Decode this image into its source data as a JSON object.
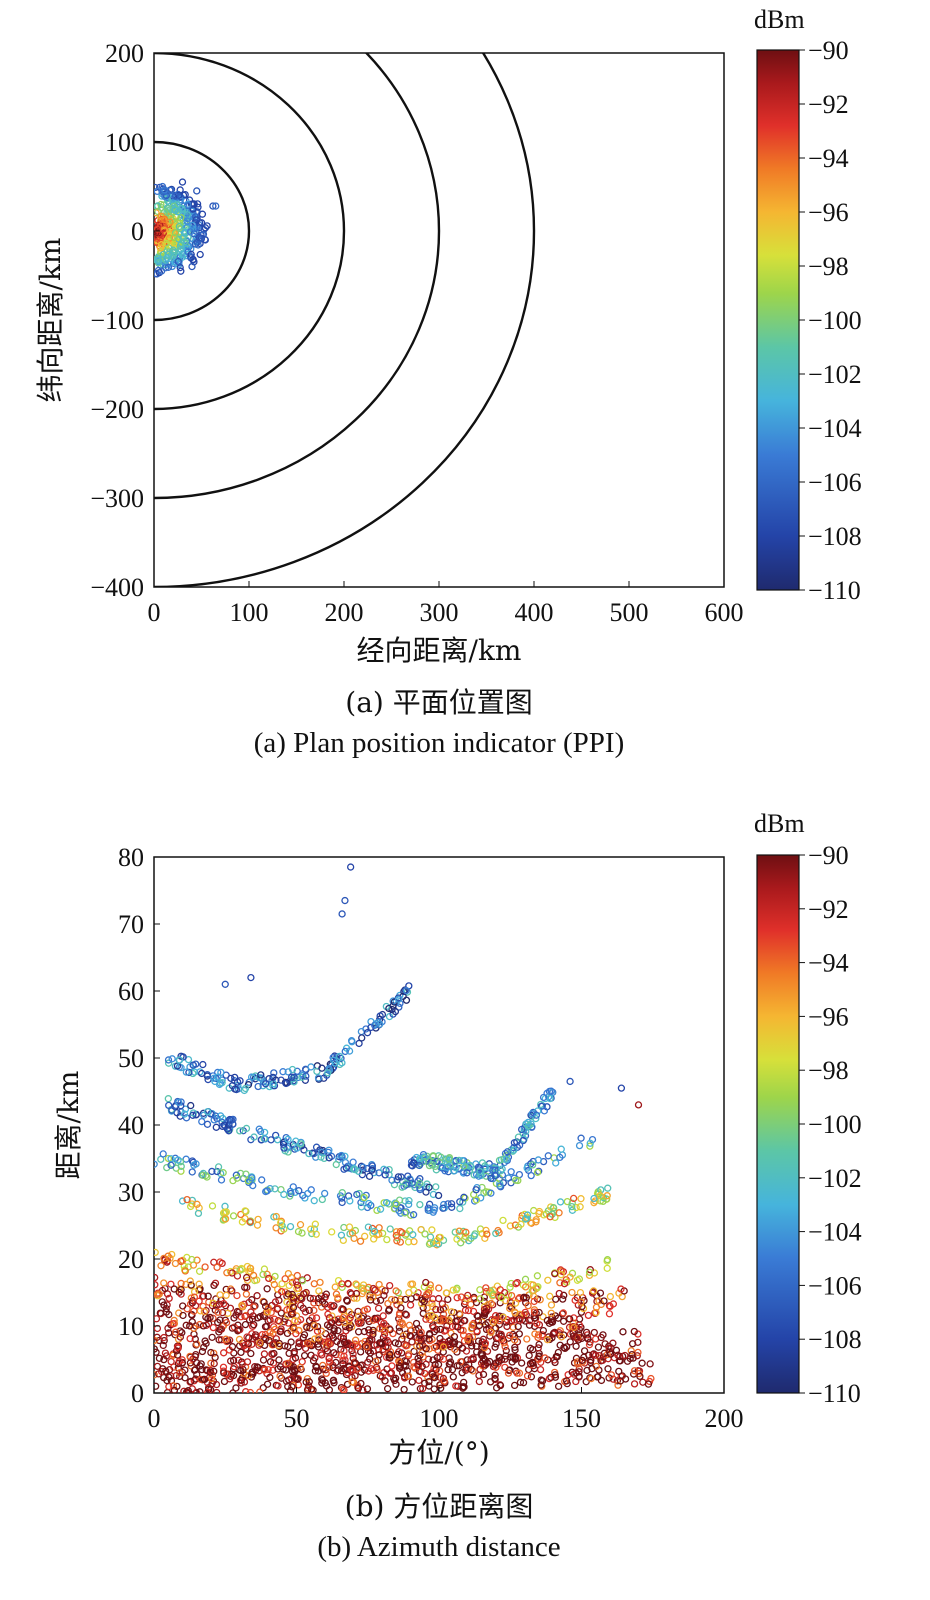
{
  "chart_data": [
    {
      "type": "scatter",
      "xlabel": "经向距离/km",
      "ylabel": "纬向距离/km",
      "xlim": [
        0,
        600
      ],
      "ylim": [
        -400,
        200
      ],
      "xticks": [
        0,
        100,
        200,
        300,
        400,
        500,
        600
      ],
      "yticks": [
        200,
        100,
        0,
        -100,
        -200,
        -300,
        -400
      ],
      "range_rings_km": [
        100,
        200,
        300,
        400
      ],
      "cluster": {
        "x_range_km": [
          0,
          70
        ],
        "y_range_km": [
          -45,
          55
        ],
        "center_dbm": -90,
        "edge_dbm": -108
      },
      "colorbar": {
        "title": "dBm",
        "min": -110,
        "max": -90,
        "ticks": [
          -90,
          -92,
          -94,
          -96,
          -98,
          -100,
          -102,
          -104,
          -106,
          -108,
          -110
        ]
      },
      "caption_cn": "(a) 平面位置图",
      "caption_en": "(a) Plan position indicator (PPI)"
    },
    {
      "type": "scatter",
      "xlabel": "方位/(°)",
      "ylabel": "距离/km",
      "xlim": [
        0,
        200
      ],
      "ylim": [
        0,
        80
      ],
      "xticks": [
        0,
        50,
        100,
        150,
        200
      ],
      "yticks": [
        80,
        70,
        60,
        50,
        40,
        30,
        20,
        10,
        0
      ],
      "tracks": [
        {
          "x": [
            0,
            60,
            120,
            175
          ],
          "y": [
            2,
            2.5,
            3,
            3.5
          ],
          "dbm": -90
        },
        {
          "x": [
            0,
            60,
            120,
            170
          ],
          "y": [
            5,
            5.5,
            6.5,
            7
          ],
          "dbm": -90
        },
        {
          "x": [
            0,
            50,
            100,
            150
          ],
          "y": [
            10,
            9,
            9,
            10
          ],
          "dbm": -91
        },
        {
          "x": [
            0,
            50,
            110,
            165
          ],
          "y": [
            15,
            13,
            12,
            14
          ],
          "dbm": -92
        },
        {
          "x": [
            0,
            60,
            120,
            160
          ],
          "y": [
            20,
            16,
            15,
            19
          ],
          "dbm": -95
        },
        {
          "x": [
            10,
            60,
            110,
            160
          ],
          "y": [
            28,
            24,
            23,
            30
          ],
          "dbm": -98
        },
        {
          "x": [
            0,
            50,
            100,
            155
          ],
          "y": [
            35,
            30,
            27,
            38
          ],
          "dbm": -103
        },
        {
          "x": [
            5,
            40,
            70,
            100
          ],
          "y": [
            43,
            38,
            34,
            30
          ],
          "dbm": -105
        },
        {
          "x": [
            5,
            30,
            60,
            90
          ],
          "y": [
            50,
            46,
            48,
            60
          ],
          "dbm": -106
        },
        {
          "x": [
            90,
            120,
            140
          ],
          "y": [
            35,
            33,
            45
          ],
          "dbm": -104
        }
      ],
      "outliers": [
        {
          "x": 69,
          "y": 78.5,
          "dbm": -108
        },
        {
          "x": 67,
          "y": 73.5,
          "dbm": -107
        },
        {
          "x": 66,
          "y": 71.5,
          "dbm": -107
        },
        {
          "x": 34,
          "y": 62,
          "dbm": -108
        },
        {
          "x": 25,
          "y": 61,
          "dbm": -107
        },
        {
          "x": 170,
          "y": 43,
          "dbm": -91
        },
        {
          "x": 164,
          "y": 45.5,
          "dbm": -108
        },
        {
          "x": 146,
          "y": 46.5,
          "dbm": -107
        }
      ],
      "colorbar": {
        "title": "dBm",
        "min": -110,
        "max": -90,
        "ticks": [
          -90,
          -92,
          -94,
          -96,
          -98,
          -100,
          -102,
          -104,
          -106,
          -108,
          -110
        ]
      },
      "caption_cn": "(b) 方位距离图",
      "caption_en": "(b) Azimuth distance"
    }
  ]
}
